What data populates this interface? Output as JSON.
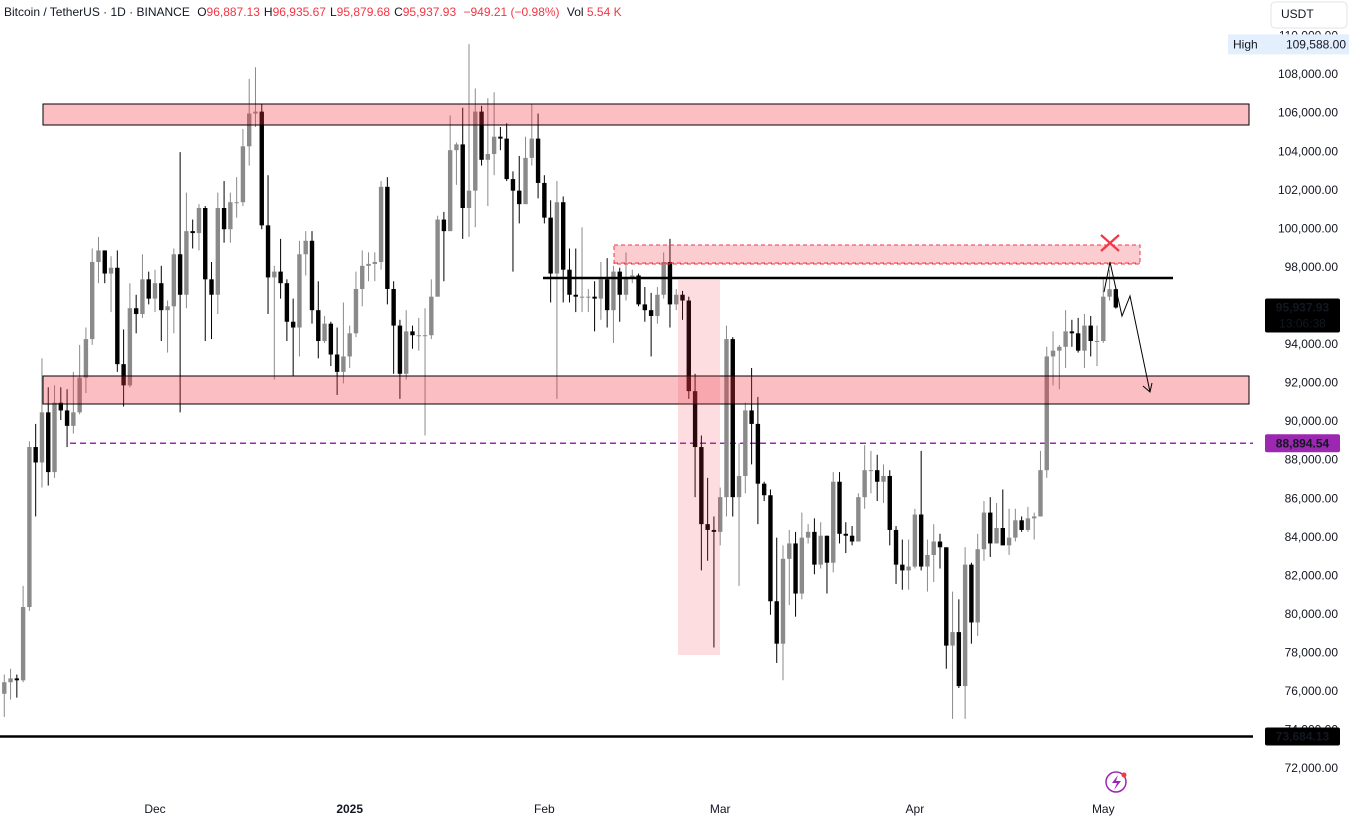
{
  "chart_data": {
    "type": "candlestick",
    "title": "Bitcoin / TetherUS · 1D · BINANCE",
    "ohlc_legend": [
      {
        "key": "O",
        "value": "96,887.13"
      },
      {
        "key": "H",
        "value": "96,935.67"
      },
      {
        "key": "L",
        "value": "95,879.68"
      },
      {
        "key": "C",
        "value": "95,937.93"
      }
    ],
    "change": "−949.21 (−0.98%)",
    "volume_key": "Vol",
    "volume": "5.54 K",
    "legend_value_color": "#f23645",
    "currency": "USDT",
    "up_color": "#8a8a8a",
    "down_color": "#000000",
    "grid": false,
    "categories": [
      null,
      null,
      null,
      null,
      null,
      null,
      null,
      null,
      null,
      null,
      null,
      null,
      null,
      null,
      null,
      null,
      null,
      null,
      null,
      null,
      null,
      null,
      null,
      null,
      "Dec",
      null,
      null,
      null,
      null,
      null,
      null,
      null,
      null,
      null,
      null,
      null,
      null,
      null,
      null,
      null,
      null,
      null,
      null,
      null,
      null,
      null,
      null,
      null,
      null,
      null,
      null,
      null,
      null,
      null,
      null,
      "2025",
      null,
      null,
      null,
      null,
      null,
      null,
      null,
      null,
      null,
      null,
      null,
      null,
      null,
      null,
      null,
      null,
      null,
      null,
      null,
      null,
      null,
      null,
      null,
      null,
      null,
      null,
      null,
      null,
      null,
      null,
      "Feb",
      null,
      null,
      null,
      null,
      null,
      null,
      null,
      null,
      null,
      null,
      null,
      null,
      null,
      null,
      null,
      null,
      null,
      null,
      null,
      null,
      null,
      null,
      null,
      null,
      null,
      null,
      null,
      "Mar",
      null,
      null,
      null,
      null,
      null,
      null,
      null,
      null,
      null,
      null,
      null,
      null,
      null,
      null,
      null,
      null,
      null,
      null,
      null,
      null,
      null,
      null,
      null,
      null,
      null,
      null,
      null,
      null,
      null,
      null,
      "Apr",
      null,
      null,
      null,
      null,
      null,
      null,
      null,
      null,
      null,
      null,
      null,
      null,
      null,
      null,
      null,
      null,
      null,
      null,
      null,
      null,
      null,
      null,
      null,
      null,
      null,
      null,
      null,
      null,
      null,
      "May",
      null,
      null
    ],
    "open": [
      75900,
      76500,
      76700,
      76600,
      80400,
      88700,
      87900,
      90500,
      87400,
      91000,
      90600,
      89800,
      90500,
      92300,
      94300,
      98300,
      98900,
      97700,
      98000,
      93000,
      91900,
      95900,
      95600,
      97400,
      96400,
      97200,
      95800,
      96000,
      98700,
      96600,
      99900,
      99800,
      101100,
      97400,
      96600,
      101100,
      100000,
      101400,
      101400,
      104300,
      106000,
      106100,
      100200,
      97500,
      97800,
      97200,
      95200,
      94900,
      98700,
      99400,
      95800,
      94200,
      95100,
      93500,
      92600,
      93400,
      94600,
      96900,
      98100,
      98200,
      98300,
      102200,
      96900,
      95000,
      92500,
      94700,
      94500,
      94500,
      94500,
      96500,
      100500,
      99900,
      104100,
      104400,
      101100,
      102000,
      106100,
      103600,
      103900,
      104800,
      104700,
      102600,
      102000,
      101300,
      103700,
      104700,
      102400,
      100600,
      97700,
      101400,
      97900,
      96600,
      96500,
      96500,
      96500,
      96400,
      97400,
      95800,
      97800,
      96600,
      97500,
      97600,
      96100,
      95800,
      95500,
      96600,
      98300,
      96100,
      96600,
      96300,
      91600,
      88700,
      84700,
      84400,
      84300,
      86100,
      94300,
      86100,
      87200,
      90600,
      89900,
      86800,
      86200,
      80700,
      78500,
      82900,
      83700,
      81100,
      84000,
      84300,
      82600,
      84100,
      82700,
      86900,
      84200,
      84100,
      83800,
      86100,
      87500,
      87500,
      86900,
      87200,
      84400,
      82600,
      82300,
      82500,
      85200,
      82500,
      83100,
      83800,
      83500,
      78400,
      79100,
      76300,
      82600,
      79600,
      83400,
      85300,
      83700,
      84500,
      83600,
      84000,
      84900,
      84400,
      85000,
      85100,
      87500,
      93400,
      93700,
      93900,
      94700,
      94600,
      93700,
      95000,
      94200,
      94200,
      96500,
      96887.13
    ],
    "high": [
      76900,
      77200,
      76900,
      81500,
      89000,
      89900,
      93300,
      91800,
      91900,
      91800,
      91700,
      92600,
      94000,
      94900,
      99000,
      99600,
      98900,
      98600,
      98900,
      94800,
      97200,
      96600,
      98700,
      97800,
      97900,
      98100,
      96300,
      99000,
      104000,
      101900,
      100500,
      101300,
      101200,
      98300,
      101900,
      102500,
      101900,
      102700,
      105200,
      107800,
      108400,
      106500,
      102800,
      98100,
      99500,
      97400,
      96400,
      99400,
      99900,
      99900,
      97300,
      95500,
      95200,
      94900,
      96200,
      95000,
      97800,
      98900,
      98800,
      98800,
      102500,
      102700,
      97300,
      95300,
      95800,
      95000,
      95400,
      95900,
      97400,
      100700,
      100900,
      105900,
      104500,
      106300,
      109600,
      107300,
      106400,
      106800,
      107100,
      105300,
      105500,
      103000,
      103800,
      104800,
      106500,
      106000,
      102800,
      101500,
      102500,
      101700,
      99000,
      99000,
      100100,
      96900,
      97300,
      98300,
      98500,
      98100,
      98000,
      98800,
      97900,
      97700,
      97000,
      96700,
      97000,
      98800,
      99500,
      96900,
      96800,
      96500,
      92500,
      89300,
      87100,
      85100,
      86600,
      95000,
      94400,
      88900,
      91000,
      92800,
      91300,
      86900,
      86500,
      84000,
      83600,
      84400,
      84300,
      85300,
      84700,
      85000,
      84800,
      84100,
      87400,
      87400,
      84800,
      84600,
      86300,
      88800,
      88500,
      88300,
      87800,
      87500,
      84600,
      83900,
      83900,
      85500,
      88500,
      83900,
      84700,
      84200,
      83500,
      81200,
      80800,
      83500,
      82700,
      84200,
      85900,
      86100,
      85800,
      86500,
      85500,
      85500,
      85100,
      85600,
      85300,
      88500,
      93900,
      94700,
      94000,
      95800,
      95300,
      95400,
      95600,
      95500,
      95000,
      97400,
      97900,
      96935.67
    ],
    "low": [
      74700,
      75600,
      75700,
      76500,
      80200,
      85100,
      86600,
      86700,
      87100,
      90100,
      88700,
      89400,
      90400,
      91500,
      94000,
      97200,
      97200,
      95700,
      92600,
      90800,
      91800,
      94600,
      95400,
      96100,
      95700,
      94200,
      93600,
      94600,
      90500,
      95900,
      99000,
      98900,
      94200,
      94300,
      95600,
      99300,
      99300,
      100600,
      101200,
      103300,
      105300,
      100000,
      95600,
      92200,
      96400,
      94200,
      92400,
      93400,
      97600,
      95100,
      93300,
      94100,
      92900,
      91400,
      92000,
      92800,
      94400,
      96000,
      97300,
      97300,
      97900,
      96100,
      92500,
      91200,
      92200,
      93800,
      93700,
      89300,
      94300,
      96500,
      97300,
      99900,
      102300,
      99500,
      99600,
      100100,
      103300,
      101200,
      102800,
      104100,
      102500,
      97800,
      100300,
      101300,
      103300,
      101600,
      100300,
      96200,
      91200,
      96200,
      96200,
      95700,
      95700,
      95700,
      94700,
      95300,
      94900,
      94100,
      95200,
      96300,
      97200,
      96000,
      95200,
      93400,
      95100,
      96400,
      94900,
      95800,
      95300,
      91200,
      86100,
      82300,
      82800,
      78300,
      83600,
      85100,
      85100,
      81500,
      86300,
      87800,
      84700,
      85900,
      80000,
      77500,
      76600,
      80500,
      79900,
      80800,
      83700,
      82100,
      82400,
      81100,
      82200,
      83700,
      83200,
      83600,
      83800,
      85500,
      86300,
      85900,
      85800,
      83600,
      81600,
      81300,
      81300,
      82400,
      82300,
      81200,
      81700,
      82400,
      77200,
      74600,
      76200,
      74600,
      78500,
      78900,
      82800,
      83000,
      83700,
      83600,
      83100,
      83800,
      84300,
      84300,
      83900,
      85100,
      87100,
      91900,
      91700,
      92800,
      93900,
      93600,
      92800,
      93400,
      92900,
      94100,
      96300,
      95879.68
    ],
    "close": [
      76500,
      76700,
      76600,
      80400,
      88700,
      87900,
      90500,
      87400,
      91000,
      90600,
      89800,
      90500,
      92300,
      94300,
      98300,
      98900,
      97700,
      98000,
      93000,
      91900,
      95900,
      95600,
      97400,
      96400,
      97200,
      95800,
      96000,
      98700,
      96600,
      99900,
      99800,
      101100,
      97400,
      96600,
      101100,
      100000,
      101400,
      101400,
      104300,
      106000,
      106100,
      100200,
      97500,
      97800,
      97200,
      95200,
      94900,
      98700,
      99400,
      95800,
      94200,
      95100,
      93500,
      92600,
      93400,
      94600,
      96900,
      98100,
      98200,
      98300,
      102200,
      96900,
      95000,
      92500,
      94700,
      94500,
      94500,
      94500,
      96500,
      100500,
      99900,
      104100,
      104400,
      101100,
      102000,
      106100,
      103600,
      103900,
      104800,
      104700,
      102600,
      102000,
      101300,
      103700,
      104700,
      102400,
      100600,
      97700,
      101400,
      97900,
      96600,
      96500,
      96500,
      96500,
      96400,
      97400,
      95800,
      97800,
      96600,
      97500,
      97600,
      96100,
      95800,
      95500,
      96600,
      98300,
      96100,
      96600,
      96300,
      91600,
      88700,
      84700,
      84400,
      84300,
      86100,
      94300,
      86100,
      87200,
      90600,
      89900,
      86800,
      86200,
      80700,
      78500,
      82900,
      83700,
      81100,
      84000,
      84300,
      82600,
      84100,
      82700,
      86900,
      84200,
      84100,
      83800,
      86100,
      87500,
      87500,
      86900,
      87200,
      84400,
      82600,
      82300,
      82500,
      85200,
      82500,
      83100,
      83800,
      83500,
      78400,
      79100,
      76300,
      82600,
      79600,
      83400,
      85300,
      83700,
      84500,
      83600,
      84000,
      84900,
      84400,
      85000,
      85100,
      87500,
      93400,
      93700,
      93900,
      94700,
      94600,
      93700,
      95000,
      94200,
      94200,
      96500,
      96887.13,
      95937.93
    ],
    "ylim": [
      70650,
      111890
    ],
    "yticks": [
      {
        "value": 72000,
        "label": "72,000.00"
      },
      {
        "value": 74000,
        "label": "74,000.00"
      },
      {
        "value": 76000,
        "label": "76,000.00"
      },
      {
        "value": 78000,
        "label": "78,000.00"
      },
      {
        "value": 80000,
        "label": "80,000.00"
      },
      {
        "value": 82000,
        "label": "82,000.00"
      },
      {
        "value": 84000,
        "label": "84,000.00"
      },
      {
        "value": 86000,
        "label": "86,000.00"
      },
      {
        "value": 88000,
        "label": "88,000.00"
      },
      {
        "value": 90000,
        "label": "90,000.00"
      },
      {
        "value": 92000,
        "label": "92,000.00"
      },
      {
        "value": 94000,
        "label": "94,000.00"
      },
      {
        "value": 96000,
        "label": "96,000.00"
      },
      {
        "value": 98000,
        "label": "98,000.00"
      },
      {
        "value": 100000,
        "label": "100,000.00"
      },
      {
        "value": 102000,
        "label": "102,000.00"
      },
      {
        "value": 104000,
        "label": "104,000.00"
      },
      {
        "value": 106000,
        "label": "106,000.00"
      },
      {
        "value": 108000,
        "label": "108,000.00"
      },
      {
        "value": 110000,
        "label": "110,000.00"
      }
    ],
    "last_price": {
      "value": 95937.93,
      "label": "95,937.93",
      "countdown": "13:06:38",
      "color": "#000000"
    },
    "high_marker": {
      "name": "High",
      "value": 109588,
      "label": "109,588.00"
    },
    "levels": [
      {
        "value": 88894.54,
        "label": "88,894.54",
        "color": "#9c27b0",
        "style": "dashed"
      },
      {
        "value": 73684.13,
        "label": "73,684.13",
        "color": "#000000",
        "style": "solid"
      }
    ]
  }
}
